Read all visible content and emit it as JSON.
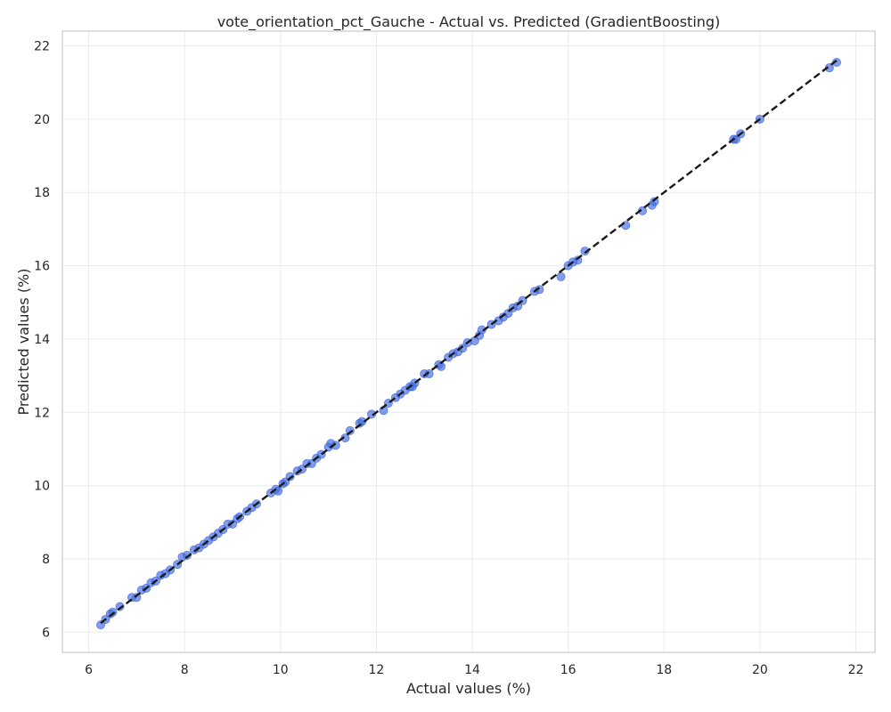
{
  "chart_data": {
    "type": "scatter",
    "title": "vote_orientation_pct_Gauche - Actual vs. Predicted (GradientBoosting)",
    "xlabel": "Actual values (%)",
    "ylabel": "Predicted values (%)",
    "xlim": [
      5.45,
      22.4
    ],
    "ylim": [
      5.45,
      22.4
    ],
    "xticks": [
      6,
      8,
      10,
      12,
      14,
      16,
      18,
      20,
      22
    ],
    "yticks": [
      6,
      8,
      10,
      12,
      14,
      16,
      18,
      20,
      22
    ],
    "grid": true,
    "point_color": "#4169e1",
    "line_color": "#1a1a1a",
    "reference_line": [
      [
        6.25,
        6.25
      ],
      [
        21.6,
        21.6
      ]
    ],
    "points": [
      [
        6.25,
        6.2
      ],
      [
        6.35,
        6.35
      ],
      [
        6.45,
        6.5
      ],
      [
        6.5,
        6.55
      ],
      [
        6.65,
        6.7
      ],
      [
        6.9,
        6.95
      ],
      [
        7.0,
        6.95
      ],
      [
        7.1,
        7.15
      ],
      [
        7.2,
        7.2
      ],
      [
        7.3,
        7.35
      ],
      [
        7.4,
        7.4
      ],
      [
        7.5,
        7.55
      ],
      [
        7.6,
        7.6
      ],
      [
        7.7,
        7.7
      ],
      [
        7.85,
        7.85
      ],
      [
        7.95,
        8.05
      ],
      [
        8.05,
        8.1
      ],
      [
        8.2,
        8.25
      ],
      [
        8.3,
        8.3
      ],
      [
        8.4,
        8.4
      ],
      [
        8.5,
        8.5
      ],
      [
        8.6,
        8.6
      ],
      [
        8.7,
        8.7
      ],
      [
        8.8,
        8.8
      ],
      [
        8.9,
        8.95
      ],
      [
        9.0,
        8.95
      ],
      [
        9.1,
        9.1
      ],
      [
        9.15,
        9.15
      ],
      [
        9.3,
        9.3
      ],
      [
        9.4,
        9.4
      ],
      [
        9.5,
        9.5
      ],
      [
        9.8,
        9.8
      ],
      [
        9.9,
        9.9
      ],
      [
        9.95,
        9.85
      ],
      [
        10.05,
        10.05
      ],
      [
        10.1,
        10.1
      ],
      [
        10.2,
        10.25
      ],
      [
        10.35,
        10.4
      ],
      [
        10.45,
        10.45
      ],
      [
        10.55,
        10.6
      ],
      [
        10.65,
        10.6
      ],
      [
        10.75,
        10.75
      ],
      [
        10.85,
        10.85
      ],
      [
        11.0,
        11.05
      ],
      [
        11.05,
        11.15
      ],
      [
        11.15,
        11.1
      ],
      [
        11.35,
        11.3
      ],
      [
        11.45,
        11.5
      ],
      [
        11.65,
        11.7
      ],
      [
        11.7,
        11.75
      ],
      [
        11.9,
        11.95
      ],
      [
        12.15,
        12.05
      ],
      [
        12.25,
        12.25
      ],
      [
        12.4,
        12.4
      ],
      [
        12.5,
        12.5
      ],
      [
        12.6,
        12.6
      ],
      [
        12.7,
        12.7
      ],
      [
        12.75,
        12.7
      ],
      [
        12.8,
        12.8
      ],
      [
        13.0,
        13.05
      ],
      [
        13.1,
        13.05
      ],
      [
        13.3,
        13.3
      ],
      [
        13.35,
        13.25
      ],
      [
        13.5,
        13.5
      ],
      [
        13.6,
        13.6
      ],
      [
        13.7,
        13.65
      ],
      [
        13.8,
        13.75
      ],
      [
        13.9,
        13.9
      ],
      [
        14.05,
        13.95
      ],
      [
        14.15,
        14.1
      ],
      [
        14.2,
        14.25
      ],
      [
        14.4,
        14.4
      ],
      [
        14.55,
        14.5
      ],
      [
        14.65,
        14.6
      ],
      [
        14.75,
        14.7
      ],
      [
        14.85,
        14.85
      ],
      [
        14.95,
        14.9
      ],
      [
        15.05,
        15.05
      ],
      [
        15.3,
        15.3
      ],
      [
        15.4,
        15.35
      ],
      [
        15.85,
        15.7
      ],
      [
        16.0,
        16.0
      ],
      [
        16.1,
        16.1
      ],
      [
        16.2,
        16.15
      ],
      [
        16.35,
        16.4
      ],
      [
        17.2,
        17.1
      ],
      [
        17.55,
        17.5
      ],
      [
        17.75,
        17.65
      ],
      [
        17.8,
        17.75
      ],
      [
        19.45,
        19.45
      ],
      [
        19.5,
        19.45
      ],
      [
        19.6,
        19.6
      ],
      [
        20.0,
        20.0
      ],
      [
        21.45,
        21.4
      ],
      [
        21.6,
        21.55
      ]
    ]
  }
}
